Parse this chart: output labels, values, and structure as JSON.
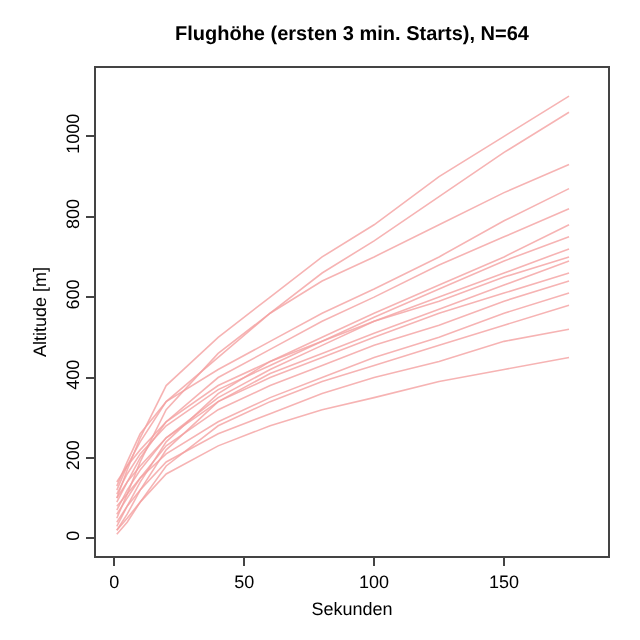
{
  "chart_data": {
    "type": "line",
    "title": "Flughöhe (ersten 3 min. Starts), N=64",
    "xlabel": "Sekunden",
    "ylabel": "Altitude [m]",
    "x": [
      1,
      5,
      10,
      20,
      40,
      60,
      80,
      100,
      125,
      150,
      175
    ],
    "xlim": [
      -7,
      190
    ],
    "xticks": [
      0,
      50,
      100,
      150
    ],
    "ylim": [
      -44,
      1170
    ],
    "yticks": [
      0,
      200,
      400,
      600,
      800,
      1000
    ],
    "grid": false,
    "legend": false,
    "series": [
      {
        "color": "#f4a0a0",
        "values": [
          100,
          170,
          250,
          380,
          500,
          600,
          700,
          780,
          900,
          1000,
          1100
        ]
      },
      {
        "color": "#f4a0a0",
        "values": [
          120,
          180,
          240,
          340,
          450,
          560,
          660,
          740,
          850,
          960,
          1060
        ]
      },
      {
        "color": "#f4a0a0",
        "values": [
          50,
          110,
          190,
          320,
          460,
          560,
          640,
          700,
          780,
          860,
          930
        ]
      },
      {
        "color": "#f4a0a0",
        "values": [
          130,
          190,
          260,
          340,
          420,
          490,
          560,
          620,
          700,
          790,
          870
        ]
      },
      {
        "color": "#f4a0a0",
        "values": [
          90,
          140,
          200,
          290,
          400,
          470,
          540,
          600,
          680,
          750,
          820
        ]
      },
      {
        "color": "#f4a0a0",
        "values": [
          30,
          80,
          140,
          240,
          360,
          440,
          500,
          560,
          630,
          700,
          780
        ]
      },
      {
        "color": "#f4a0a0",
        "values": [
          110,
          160,
          210,
          280,
          370,
          430,
          490,
          550,
          620,
          690,
          750
        ]
      },
      {
        "color": "#f4a0a0",
        "values": [
          70,
          120,
          170,
          250,
          350,
          420,
          480,
          540,
          600,
          660,
          720
        ]
      },
      {
        "color": "#f4a0a0",
        "values": [
          140,
          180,
          220,
          290,
          380,
          440,
          490,
          540,
          590,
          650,
          700
        ]
      },
      {
        "color": "#f4a0a0",
        "values": [
          20,
          60,
          120,
          220,
          340,
          410,
          460,
          510,
          570,
          630,
          690
        ]
      },
      {
        "color": "#f4a0a0",
        "values": [
          100,
          140,
          180,
          250,
          340,
          400,
          450,
          500,
          560,
          610,
          660
        ]
      },
      {
        "color": "#f4a0a0",
        "values": [
          60,
          100,
          150,
          230,
          320,
          380,
          430,
          480,
          530,
          590,
          640
        ]
      },
      {
        "color": "#f4a0a0",
        "values": [
          80,
          110,
          150,
          210,
          290,
          350,
          400,
          450,
          500,
          560,
          610
        ]
      },
      {
        "color": "#f4a0a0",
        "values": [
          10,
          40,
          90,
          180,
          280,
          340,
          390,
          430,
          480,
          530,
          580
        ]
      },
      {
        "color": "#f4a0a0",
        "values": [
          40,
          80,
          120,
          190,
          260,
          310,
          360,
          400,
          440,
          490,
          520
        ]
      },
      {
        "color": "#f4a0a0",
        "values": [
          20,
          50,
          90,
          160,
          230,
          280,
          320,
          350,
          390,
          420,
          450
        ]
      }
    ]
  }
}
